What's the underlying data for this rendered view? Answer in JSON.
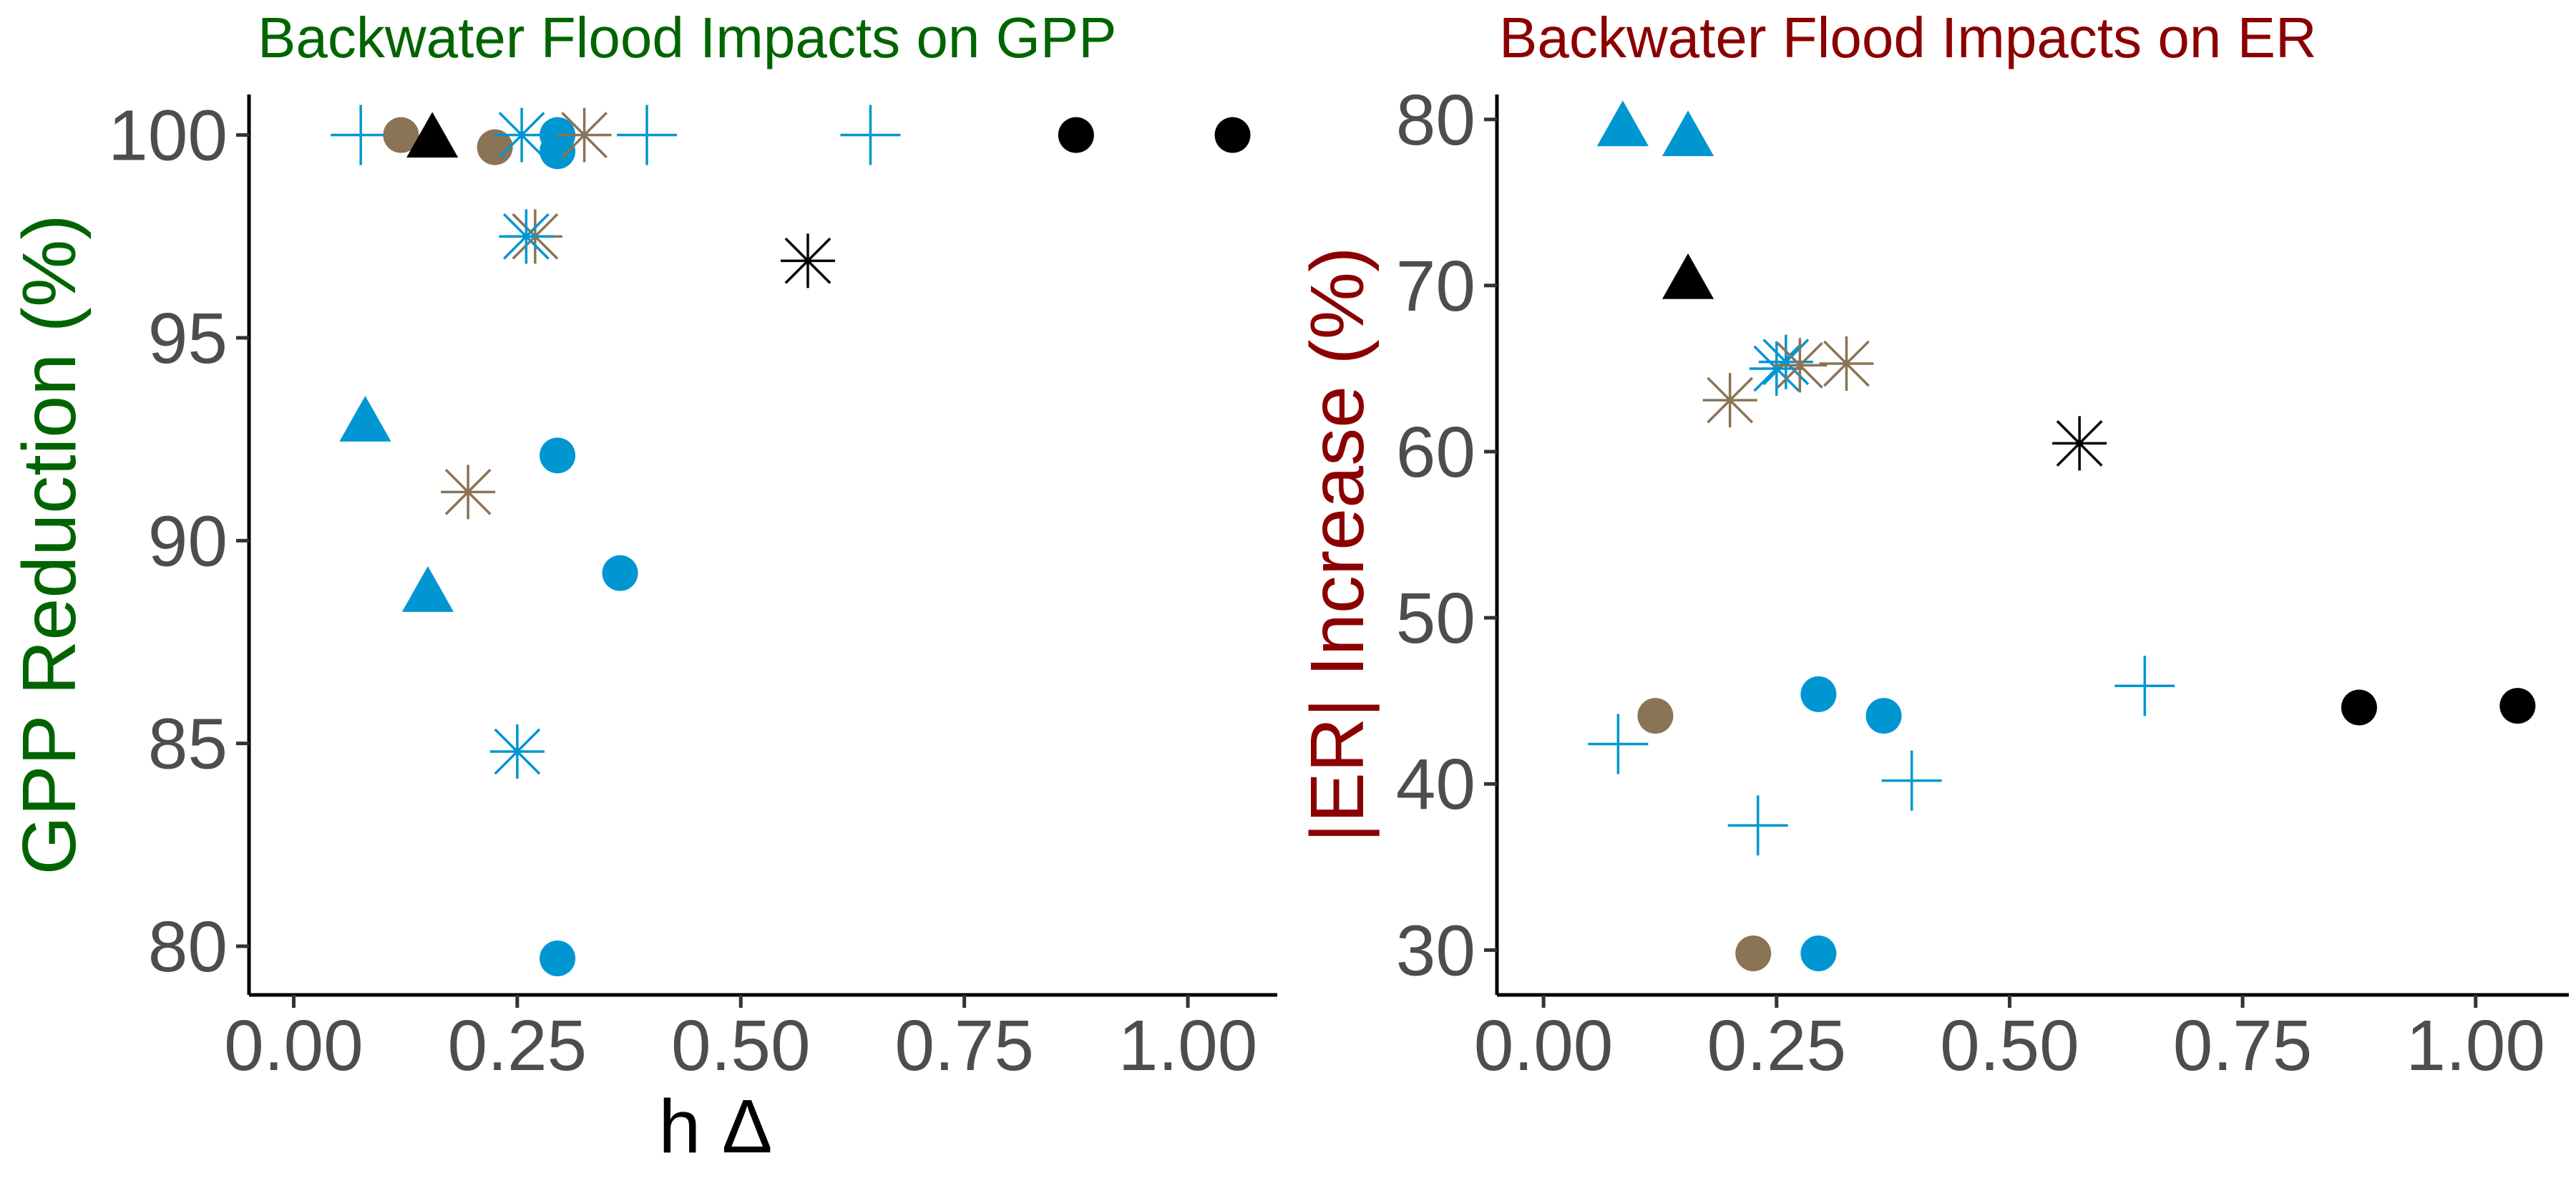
{
  "chart_data": [
    {
      "type": "scatter",
      "title": "Backwater Flood Impacts on GPP",
      "xlabel": "h Δ",
      "ylabel": "GPP Reduction (%)",
      "xlim": [
        -0.05,
        1.1
      ],
      "ylim": [
        78.8,
        101.0
      ],
      "x_ticks": [
        0.0,
        0.25,
        0.5,
        0.75,
        1.0
      ],
      "x_tick_labels": [
        "0.00",
        "0.25",
        "0.50",
        "0.75",
        "1.00"
      ],
      "y_ticks": [
        80,
        85,
        90,
        95,
        100
      ],
      "y_tick_labels": [
        "80",
        "85",
        "90",
        "95",
        "100"
      ],
      "grid": false,
      "legend": "none",
      "title_color": "#006400",
      "ylabel_color": "#006400",
      "xlabel_color": "#000000",
      "points": [
        {
          "x": 0.075,
          "y": 100.0,
          "shape": "plus",
          "color": "#0096d2"
        },
        {
          "x": 0.12,
          "y": 100.0,
          "shape": "circle",
          "color": "#8b7355"
        },
        {
          "x": 0.155,
          "y": 99.9,
          "shape": "triangle",
          "color": "#000000"
        },
        {
          "x": 0.225,
          "y": 99.7,
          "shape": "circle",
          "color": "#8b7355"
        },
        {
          "x": 0.255,
          "y": 100.0,
          "shape": "asterisk",
          "color": "#0096d2"
        },
        {
          "x": 0.295,
          "y": 100.0,
          "shape": "circle",
          "color": "#0096d2"
        },
        {
          "x": 0.295,
          "y": 99.6,
          "shape": "circle",
          "color": "#0096d2"
        },
        {
          "x": 0.325,
          "y": 100.0,
          "shape": "asterisk",
          "color": "#8b7355"
        },
        {
          "x": 0.395,
          "y": 100.0,
          "shape": "plus",
          "color": "#0096d2"
        },
        {
          "x": 0.645,
          "y": 100.0,
          "shape": "plus",
          "color": "#0096d2"
        },
        {
          "x": 0.875,
          "y": 100.0,
          "shape": "circle",
          "color": "#000000"
        },
        {
          "x": 1.05,
          "y": 100.0,
          "shape": "circle",
          "color": "#000000"
        },
        {
          "x": 0.27,
          "y": 97.5,
          "shape": "asterisk",
          "color": "#8b7355"
        },
        {
          "x": 0.26,
          "y": 97.5,
          "shape": "asterisk",
          "color": "#0096d2"
        },
        {
          "x": 0.575,
          "y": 96.9,
          "shape": "asterisk",
          "color": "#000000"
        },
        {
          "x": 0.08,
          "y": 92.9,
          "shape": "triangle",
          "color": "#0096d2"
        },
        {
          "x": 0.295,
          "y": 92.1,
          "shape": "circle",
          "color": "#0096d2"
        },
        {
          "x": 0.195,
          "y": 91.2,
          "shape": "asterisk",
          "color": "#8b7355"
        },
        {
          "x": 0.365,
          "y": 89.2,
          "shape": "circle",
          "color": "#0096d2"
        },
        {
          "x": 0.15,
          "y": 88.7,
          "shape": "triangle",
          "color": "#0096d2"
        },
        {
          "x": 0.25,
          "y": 84.8,
          "shape": "asterisk",
          "color": "#0096d2"
        },
        {
          "x": 0.295,
          "y": 79.7,
          "shape": "circle",
          "color": "#0096d2"
        }
      ]
    },
    {
      "type": "scatter",
      "title": "Backwater Flood Impacts on ER",
      "xlabel": "",
      "ylabel": "|ER| Increase (%)",
      "xlim": [
        -0.05,
        1.1
      ],
      "ylim": [
        27.3,
        81.5
      ],
      "x_ticks": [
        0.0,
        0.25,
        0.5,
        0.75,
        1.0
      ],
      "x_tick_labels": [
        "0.00",
        "0.25",
        "0.50",
        "0.75",
        "1.00"
      ],
      "y_ticks": [
        30,
        40,
        50,
        60,
        70,
        80
      ],
      "y_tick_labels": [
        "30",
        "40",
        "50",
        "60",
        "70",
        "80"
      ],
      "grid": false,
      "legend": "none",
      "title_color": "#8b0000",
      "ylabel_color": "#8b0000",
      "points": [
        {
          "x": 0.085,
          "y": 79.5,
          "shape": "triangle",
          "color": "#0096d2"
        },
        {
          "x": 0.155,
          "y": 78.9,
          "shape": "triangle",
          "color": "#0096d2"
        },
        {
          "x": 0.155,
          "y": 70.3,
          "shape": "triangle",
          "color": "#000000"
        },
        {
          "x": 0.25,
          "y": 65.0,
          "shape": "asterisk",
          "color": "#0096d2"
        },
        {
          "x": 0.26,
          "y": 65.4,
          "shape": "asterisk",
          "color": "#0096d2"
        },
        {
          "x": 0.275,
          "y": 65.2,
          "shape": "asterisk",
          "color": "#8b7355"
        },
        {
          "x": 0.325,
          "y": 65.3,
          "shape": "asterisk",
          "color": "#8b7355"
        },
        {
          "x": 0.2,
          "y": 63.1,
          "shape": "asterisk",
          "color": "#8b7355"
        },
        {
          "x": 0.575,
          "y": 60.5,
          "shape": "asterisk",
          "color": "#000000"
        },
        {
          "x": 0.645,
          "y": 45.9,
          "shape": "plus",
          "color": "#0096d2"
        },
        {
          "x": 0.295,
          "y": 45.4,
          "shape": "circle",
          "color": "#0096d2"
        },
        {
          "x": 0.875,
          "y": 44.6,
          "shape": "circle",
          "color": "#000000"
        },
        {
          "x": 1.045,
          "y": 44.7,
          "shape": "circle",
          "color": "#000000"
        },
        {
          "x": 0.365,
          "y": 44.1,
          "shape": "circle",
          "color": "#0096d2"
        },
        {
          "x": 0.12,
          "y": 44.1,
          "shape": "circle",
          "color": "#8b7355"
        },
        {
          "x": 0.08,
          "y": 42.4,
          "shape": "plus",
          "color": "#0096d2"
        },
        {
          "x": 0.395,
          "y": 40.2,
          "shape": "plus",
          "color": "#0096d2"
        },
        {
          "x": 0.23,
          "y": 37.5,
          "shape": "plus",
          "color": "#0096d2"
        },
        {
          "x": 0.225,
          "y": 29.8,
          "shape": "circle",
          "color": "#8b7355"
        },
        {
          "x": 0.295,
          "y": 29.8,
          "shape": "circle",
          "color": "#0096d2"
        }
      ]
    }
  ]
}
